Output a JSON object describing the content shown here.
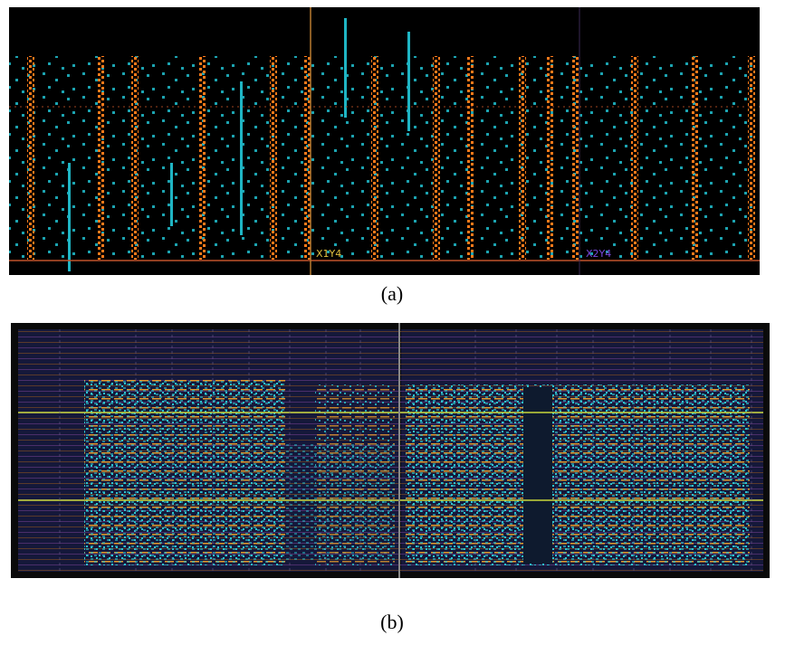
{
  "panels": [
    {
      "label": "(a)",
      "regions": [
        "X1Y4",
        "X2Y4"
      ]
    },
    {
      "label": "(b)"
    }
  ]
}
